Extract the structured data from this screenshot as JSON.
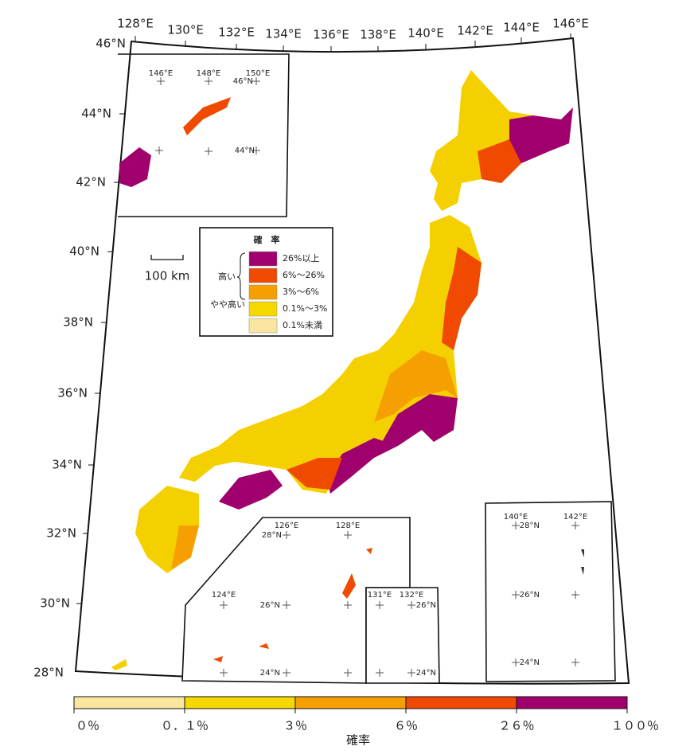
{
  "map": {
    "lon_labels": [
      "128°E",
      "130°E",
      "132°E",
      "134°E",
      "136°E",
      "138°E",
      "140°E",
      "142°E",
      "144°E",
      "146°E"
    ],
    "lat_labels": [
      "46°N",
      "44°N",
      "42°N",
      "40°N",
      "38°N",
      "36°N",
      "34°N",
      "32°N",
      "30°N",
      "28°N"
    ],
    "inset_hokkaido": {
      "lon_labels": [
        "146°E",
        "148°E",
        "150°E"
      ],
      "lat_labels": [
        "46°N",
        "44°N"
      ]
    },
    "inset_okinawa": {
      "lon_labels": [
        "124°E",
        "126°E",
        "128°E"
      ],
      "lat_labels": [
        "28°N",
        "26°N",
        "24°N"
      ]
    },
    "inset_daito": {
      "lon_labels": [
        "131°E",
        "132°E"
      ],
      "lat_labels": [
        "26°N",
        "24°N"
      ]
    },
    "inset_ogasawara": {
      "lon_labels": [
        "140°E",
        "142°E"
      ],
      "lat_labels": [
        "28°N",
        "26°N",
        "24°N"
      ]
    },
    "scale_bar": "100 km"
  },
  "legend": {
    "title": "確　率",
    "high": "高い",
    "somewhat_high": "やや高い",
    "items": [
      {
        "label": "26%以上",
        "color": "#a0006e"
      },
      {
        "label": "6%～26%",
        "color": "#f04a00"
      },
      {
        "label": "3%～6%",
        "color": "#f5a000"
      },
      {
        "label": "0.1%～3%",
        "color": "#f5d800"
      },
      {
        "label": "0.1%未満",
        "color": "#fbe6a0"
      }
    ]
  },
  "colorbar": {
    "title": "確率",
    "labels": [
      "０％",
      "０．１％",
      "３％",
      "６％",
      "２６％",
      "１００％"
    ],
    "colors": [
      "#fbe6a0",
      "#f5d800",
      "#f5a000",
      "#f04a00",
      "#a0006e"
    ]
  }
}
